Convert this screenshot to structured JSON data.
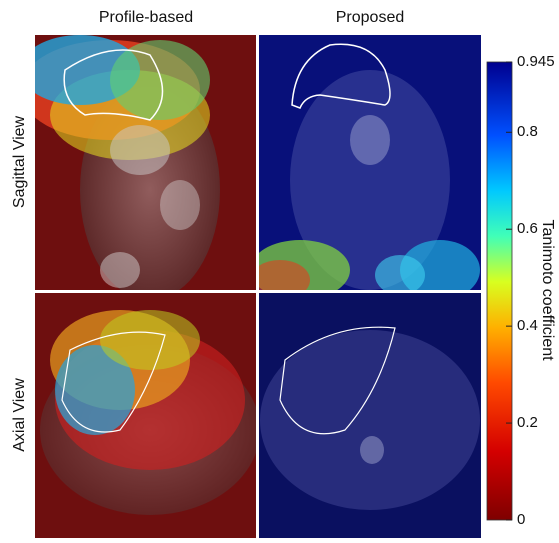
{
  "columns": [
    "Profile-based",
    "Proposed"
  ],
  "rows": [
    "Sagittal View",
    "Axial View"
  ],
  "colorbar": {
    "label": "Tanimoto coefficient",
    "lim": [
      0,
      0.945
    ],
    "ticks": [
      0,
      0.2,
      0.4,
      0.6,
      0.8,
      0.945
    ]
  }
}
